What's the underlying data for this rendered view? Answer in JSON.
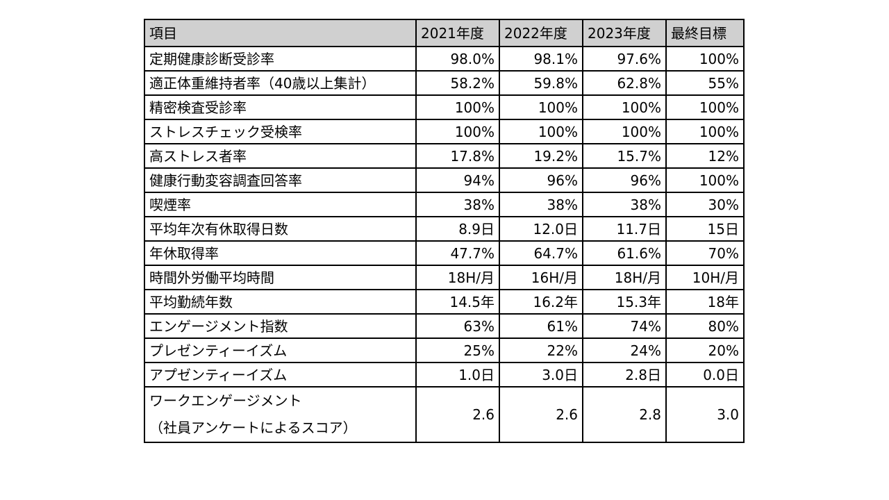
{
  "table": {
    "headers": [
      "項目",
      "2021年度",
      "2022年度",
      "2023年度",
      "最終目標"
    ],
    "rows": [
      {
        "label": "定期健康診断受診率",
        "values": [
          "98.0%",
          "98.1%",
          "97.6%",
          "100%"
        ]
      },
      {
        "label": "適正体重維持者率（40歳以上集計）",
        "values": [
          "58.2%",
          "59.8%",
          "62.8%",
          "55%"
        ]
      },
      {
        "label": "精密検査受診率",
        "values": [
          "100%",
          "100%",
          "100%",
          "100%"
        ]
      },
      {
        "label": "ストレスチェック受検率",
        "values": [
          "100%",
          "100%",
          "100%",
          "100%"
        ]
      },
      {
        "label": "高ストレス者率",
        "values": [
          "17.8%",
          "19.2%",
          "15.7%",
          "12%"
        ]
      },
      {
        "label": "健康行動変容調査回答率",
        "values": [
          "94%",
          "96%",
          "96%",
          "100%"
        ]
      },
      {
        "label": "喫煙率",
        "values": [
          "38%",
          "38%",
          "38%",
          "30%"
        ]
      },
      {
        "label": "平均年次有休取得日数",
        "values": [
          "8.9日",
          "12.0日",
          "11.7日",
          "15日"
        ]
      },
      {
        "label": "年休取得率",
        "values": [
          "47.7%",
          "64.7%",
          "61.6%",
          "70%"
        ]
      },
      {
        "label": "時間外労働平均時間",
        "values": [
          "18H/月",
          "16H/月",
          "18H/月",
          "10H/月"
        ]
      },
      {
        "label": "平均勤続年数",
        "values": [
          "14.5年",
          "16.2年",
          "15.3年",
          "18年"
        ]
      },
      {
        "label": "エンゲージメント指数",
        "values": [
          "63%",
          "61%",
          "74%",
          "80%"
        ]
      },
      {
        "label": "プレゼンティーイズム",
        "values": [
          "25%",
          "22%",
          "24%",
          "20%"
        ]
      },
      {
        "label": "アプゼンティーイズム",
        "values": [
          "1.0日",
          "3.0日",
          "2.8日",
          "0.0日"
        ]
      },
      {
        "label_line1": "ワークエンゲージメント",
        "label_line2": "（社員アンケートによるスコア）",
        "values": [
          "2.6",
          "2.6",
          "2.8",
          "3.0"
        ]
      }
    ]
  }
}
